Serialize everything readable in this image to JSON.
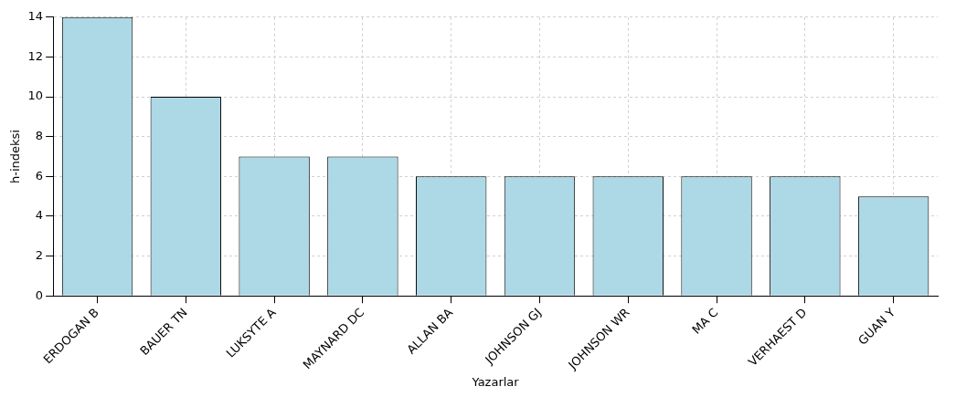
{
  "chart_data": {
    "type": "bar",
    "xlabel": "Yazarlar",
    "ylabel": "h-indeksi",
    "categories": [
      "ERDOGAN B",
      "BAUER TN",
      "LUKSYTE A",
      "MAYNARD DC",
      "ALLAN BA",
      "JOHNSON GJ",
      "JOHNSON WR",
      "MA C",
      "VERHAEST D",
      "GUAN Y"
    ],
    "values": [
      14,
      10,
      7,
      7,
      6,
      6,
      6,
      6,
      6,
      5
    ],
    "color": "#add8e6",
    "ylim": [
      0,
      14
    ],
    "yticks": [
      0,
      2,
      4,
      6,
      8,
      10,
      12,
      14
    ],
    "grid": true
  }
}
